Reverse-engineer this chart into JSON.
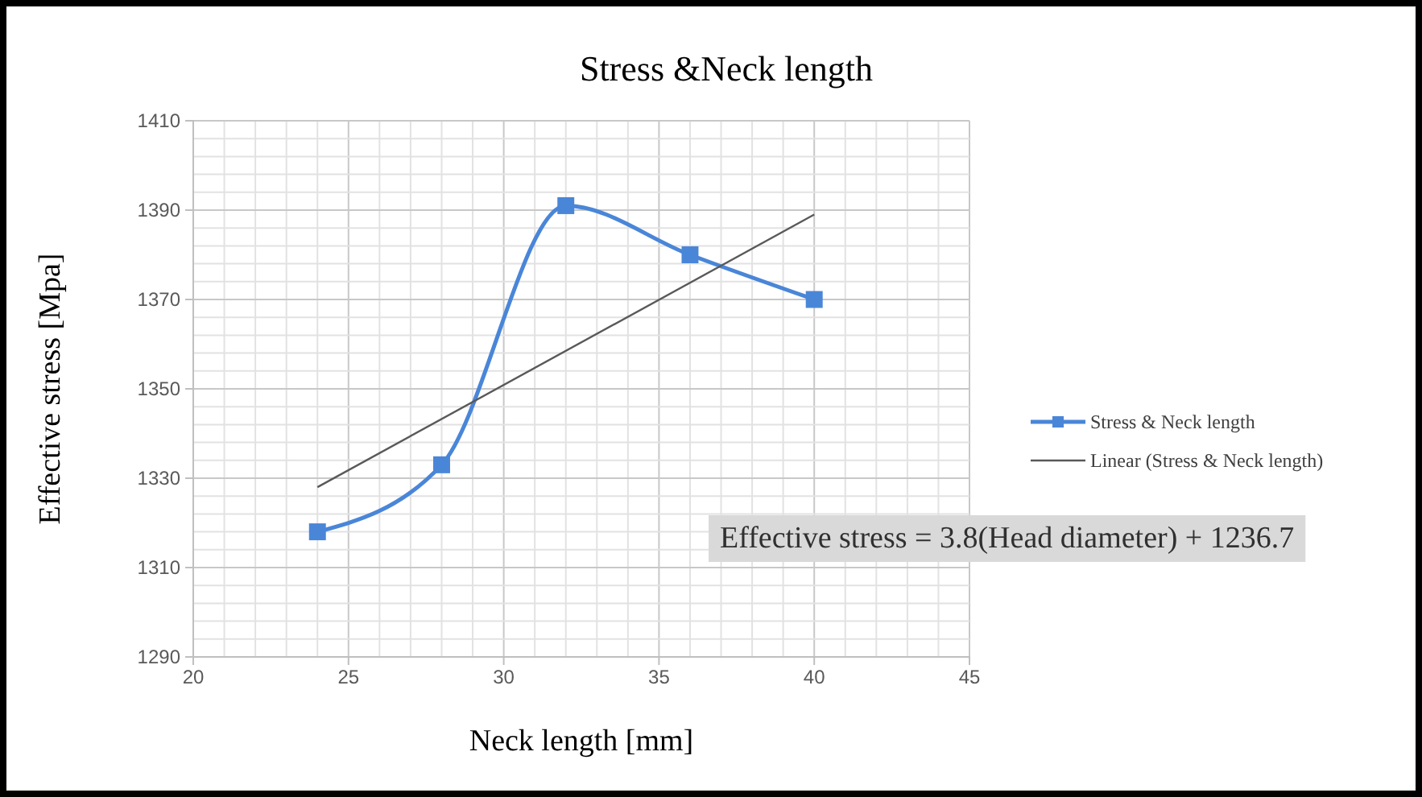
{
  "chart_data": {
    "type": "line",
    "title": "Stress &Neck length",
    "xlabel": "Neck length [mm]",
    "ylabel": "Effective stress [Mpa]",
    "x": [
      24,
      28,
      32,
      36,
      40
    ],
    "series": [
      {
        "name": "Stress & Neck length",
        "color": "#4a86d8",
        "values": [
          1318,
          1333,
          1391,
          1380,
          1370
        ],
        "marker": "square"
      },
      {
        "name": "Linear (Stress & Neck length)",
        "type": "line",
        "color": "#595959",
        "x": [
          24,
          40
        ],
        "values": [
          1328,
          1389
        ],
        "marker": "none"
      }
    ],
    "xlim": [
      20,
      45
    ],
    "xticks": [
      20,
      25,
      30,
      35,
      40,
      45
    ],
    "ylim": [
      1290,
      1410
    ],
    "yticks": [
      1290,
      1310,
      1330,
      1350,
      1370,
      1390,
      1410
    ],
    "grid": true,
    "legend": "right",
    "annotations": [
      "Effective stress = 3.8(Head diameter) + 1236.7"
    ]
  }
}
